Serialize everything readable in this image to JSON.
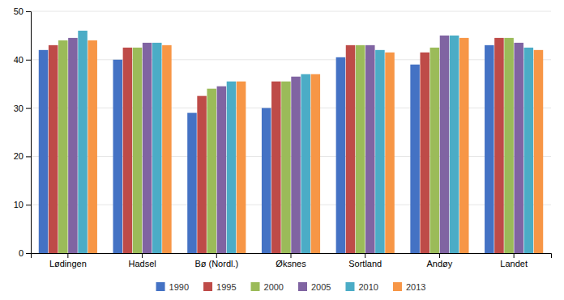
{
  "chart_data": {
    "type": "bar",
    "categories": [
      "Lødingen",
      "Hadsel",
      "Bø (Nordl.)",
      "Øksnes",
      "Sortland",
      "Andøy",
      "Landet"
    ],
    "series": [
      {
        "name": "1990",
        "color": "#4472C4",
        "values": [
          42,
          40,
          29,
          30,
          40.5,
          39,
          43
        ]
      },
      {
        "name": "1995",
        "color": "#BE4B48",
        "values": [
          43,
          42.5,
          32.5,
          35.5,
          43,
          41.5,
          44.5
        ]
      },
      {
        "name": "2000",
        "color": "#9BBB59",
        "values": [
          44,
          42.5,
          34,
          35.5,
          43,
          42.5,
          44.5
        ]
      },
      {
        "name": "2005",
        "color": "#8064A2",
        "values": [
          44.5,
          43.5,
          34.5,
          36.5,
          43,
          45,
          43.5
        ]
      },
      {
        "name": "2010",
        "color": "#4BACC6",
        "values": [
          46,
          43.5,
          35.5,
          37,
          42,
          45,
          42.5
        ]
      },
      {
        "name": "2013",
        "color": "#F79646",
        "values": [
          44,
          43,
          35.5,
          37,
          41.5,
          44.5,
          42
        ]
      }
    ],
    "ylim": [
      0,
      50
    ],
    "yticks": [
      0,
      10,
      20,
      30,
      40,
      50
    ],
    "grid": true,
    "legend": "bottom"
  }
}
